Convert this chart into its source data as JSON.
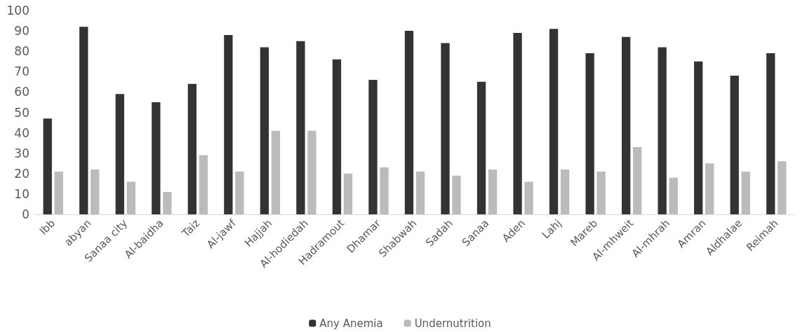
{
  "chart_data": {
    "type": "bar",
    "categories": [
      "Ibb",
      "abyan",
      "Sanaa city",
      "Al-baidha",
      "Taiz",
      "Al-jawf",
      "Hajjah",
      "Al-hodiedah",
      "Hadramout",
      "Dhamar",
      "Shabwah",
      "Sadah",
      "Sanaa",
      "Aden",
      "Lahj",
      "Mareb",
      "Al-mhweit",
      "Al-mhrah",
      "Amran",
      "Aldhalae",
      "Reimah"
    ],
    "series": [
      {
        "name": "Any Anemia",
        "color": "#333333",
        "values": [
          47,
          92,
          59,
          55,
          64,
          88,
          82,
          85,
          76,
          66,
          90,
          84,
          65,
          89,
          91,
          79,
          87,
          82,
          75,
          68,
          79
        ]
      },
      {
        "name": "Undernutrition",
        "color": "#bbbbbb",
        "values": [
          21,
          22,
          16,
          11,
          29,
          21,
          41,
          41,
          20,
          23,
          21,
          19,
          22,
          16,
          22,
          21,
          33,
          18,
          25,
          21,
          26
        ]
      }
    ],
    "ylim": [
      0,
      100
    ],
    "yticks": [
      0,
      10,
      20,
      30,
      40,
      50,
      60,
      70,
      80,
      90,
      100
    ],
    "grid": false,
    "legend": "bottom"
  }
}
